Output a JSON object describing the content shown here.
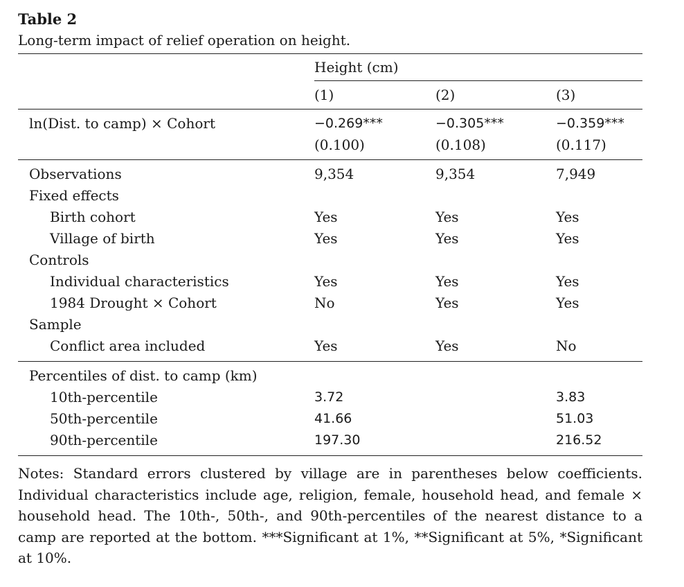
{
  "table_number": "Table 2",
  "caption": "Long-term impact of relief operation on height.",
  "header": {
    "dependent": "Height (cm)",
    "cols": [
      "(1)",
      "(2)",
      "(3)"
    ]
  },
  "coef_row": {
    "label": "ln(Dist. to camp) × Cohort",
    "coefs": [
      "−0.269***",
      "−0.305***",
      "−0.359***"
    ],
    "ses": [
      "(0.100)",
      "(0.108)",
      "(0.117)"
    ]
  },
  "rows": [
    {
      "label": "Observations",
      "indent": false,
      "vals": [
        "9,354",
        "9,354",
        "7,949"
      ]
    },
    {
      "label": "Fixed effects",
      "indent": false,
      "vals": [
        "",
        "",
        ""
      ]
    },
    {
      "label": "Birth cohort",
      "indent": true,
      "vals": [
        "Yes",
        "Yes",
        "Yes"
      ]
    },
    {
      "label": "Village of birth",
      "indent": true,
      "vals": [
        "Yes",
        "Yes",
        "Yes"
      ]
    },
    {
      "label": "Controls",
      "indent": false,
      "vals": [
        "",
        "",
        ""
      ]
    },
    {
      "label": "Individual characteristics",
      "indent": true,
      "vals": [
        "Yes",
        "Yes",
        "Yes"
      ]
    },
    {
      "label": "1984 Drought × Cohort",
      "indent": true,
      "vals": [
        "No",
        "Yes",
        "Yes"
      ]
    },
    {
      "label": "Sample",
      "indent": false,
      "vals": [
        "",
        "",
        ""
      ]
    },
    {
      "label": "Conflict area included",
      "indent": true,
      "vals": [
        "Yes",
        "Yes",
        "No"
      ]
    }
  ],
  "percentiles": {
    "label": "Percentiles of dist. to camp (km)",
    "rows": [
      {
        "label": "10th-percentile",
        "vals": [
          "3.72",
          "",
          "3.83"
        ]
      },
      {
        "label": "50th-percentile",
        "vals": [
          "41.66",
          "",
          "51.03"
        ]
      },
      {
        "label": "90th-percentile",
        "vals": [
          "197.30",
          "",
          "216.52"
        ]
      }
    ]
  },
  "notes": "Notes: Standard errors clustered by village are in parentheses below coefficients. Individual characteristics include age, religion, female, household head, and female × household head. The 10th-, 50th-, and 90th-percentiles of the nearest distance to a camp are reported at the bottom. ***Significant at 1%, **Significant at 5%, *Significant at 10%."
}
